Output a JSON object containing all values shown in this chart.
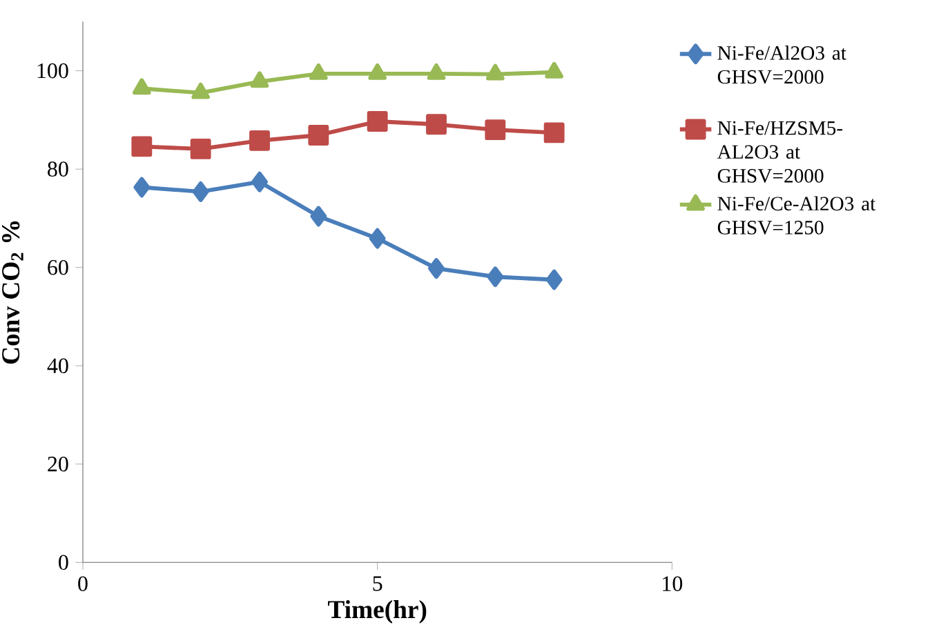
{
  "chart_data": {
    "type": "line",
    "xlabel": "Time(hr)",
    "ylabel": "Conv CO$_{2}$ %",
    "x": [
      1,
      2,
      3,
      4,
      5,
      6,
      7,
      8
    ],
    "series": [
      {
        "name": "Ni-Fe/Al2O3 at GHSV=2000",
        "color": "#4a7ebb",
        "marker": "diamond",
        "values": [
          76.3,
          75.4,
          77.4,
          70.4,
          65.9,
          59.8,
          58.1,
          57.5
        ]
      },
      {
        "name": "Ni-Fe/HZSM5-AL2O3 at GHSV=2000",
        "color": "#be4b48",
        "marker": "square",
        "values": [
          84.6,
          84.1,
          85.8,
          86.9,
          89.7,
          89.1,
          88.0,
          87.4
        ]
      },
      {
        "name": "Ni-Fe/Ce-Al2O3 at GHSV=1250",
        "color": "#98b954",
        "marker": "triangle",
        "values": [
          96.4,
          95.5,
          97.8,
          99.4,
          99.4,
          99.4,
          99.3,
          99.7
        ]
      }
    ],
    "xlim": [
      0,
      10
    ],
    "xticks": [
      0,
      5,
      10
    ],
    "ylim": [
      0,
      110
    ],
    "yticks": [
      0,
      20,
      40,
      60,
      80,
      100
    ],
    "grid": false,
    "legend": "right",
    "line_style": "solid"
  }
}
